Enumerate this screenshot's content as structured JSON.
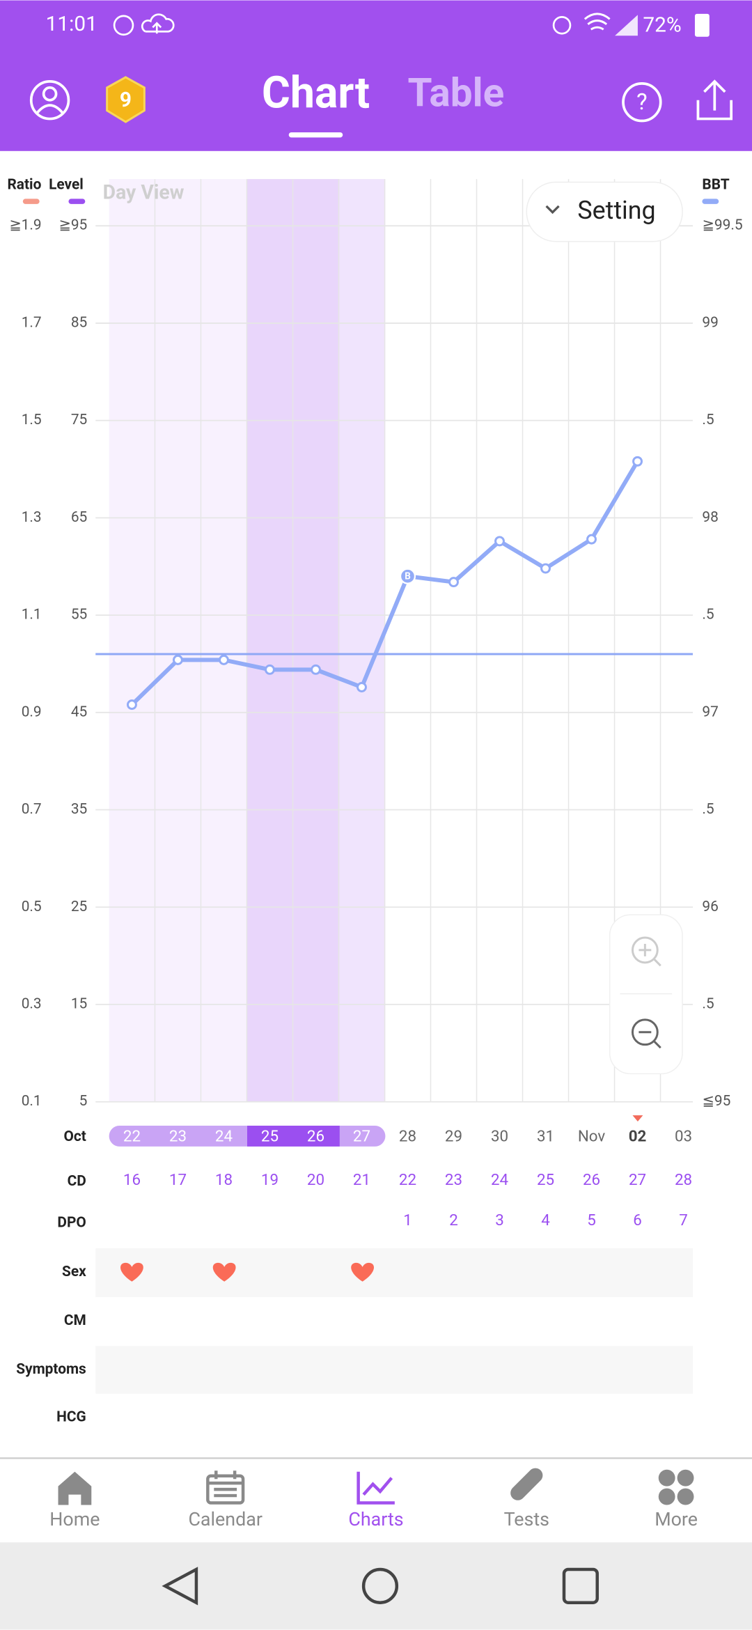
{
  "status_bar": {
    "time": "11:01",
    "battery": "72%"
  },
  "header": {
    "badge": "9",
    "tabs": [
      "Chart",
      "Table"
    ]
  },
  "chart_data": {
    "type": "line",
    "view_label": "Day View",
    "setting": "Setting",
    "axis_labels": {
      "ratio": "Ratio",
      "level": "Level"
    },
    "month_label": "Oct",
    "ovulation_marker": "B",
    "categories": [
      "22",
      "23",
      "24",
      "25",
      "26",
      "27",
      "28",
      "29",
      "30",
      "31",
      "Nov",
      "02",
      "03"
    ],
    "series": [
      {
        "name": "BBT",
        "color": "#92abf7",
        "values": [
          97.04,
          97.27,
          97.27,
          97.22,
          97.22,
          97.13,
          97.7,
          97.67,
          97.88,
          97.74,
          97.89,
          98.29,
          null
        ]
      }
    ],
    "coverline": 97.3,
    "ylim": [
      95,
      99.5
    ],
    "yticks": [
      {
        "value": 99.5,
        "label": "≧99.5"
      },
      99,
      {
        "value": 98.5,
        "label": ".5"
      },
      98,
      {
        "value": 97.5,
        "label": ".5"
      },
      97,
      {
        "value": 96.5,
        "label": ".5"
      },
      96,
      {
        "value": 95.5,
        "label": ".5"
      },
      {
        "value": 95,
        "label": "≦95"
      }
    ],
    "ratio_lim": [
      0.1,
      1.9
    ],
    "ratio_ticks": [
      {
        "value": 1.9,
        "label": "≧1.9"
      },
      1.7,
      1.5,
      1.3,
      1.1,
      0.9,
      0.7,
      0.5,
      0.3,
      0.1
    ],
    "level_lim": [
      5,
      95
    ],
    "level_ticks": [
      {
        "value": 95,
        "label": "≧95"
      },
      85,
      75,
      65,
      55,
      45,
      35,
      25,
      15,
      5
    ],
    "grid": true
  },
  "rows": {
    "labels": [
      "CD",
      "DPO",
      "Sex",
      "CM",
      "Symptoms",
      "HCG"
    ],
    "cd": [
      16,
      17,
      18,
      19,
      20,
      21,
      22,
      23,
      24,
      25,
      26,
      27,
      28
    ],
    "dpo": [
      null,
      null,
      null,
      null,
      null,
      null,
      1,
      2,
      3,
      4,
      5,
      6,
      7
    ]
  },
  "nav": [
    "Home",
    "Calendar",
    "Charts",
    "Tests",
    "More"
  ]
}
